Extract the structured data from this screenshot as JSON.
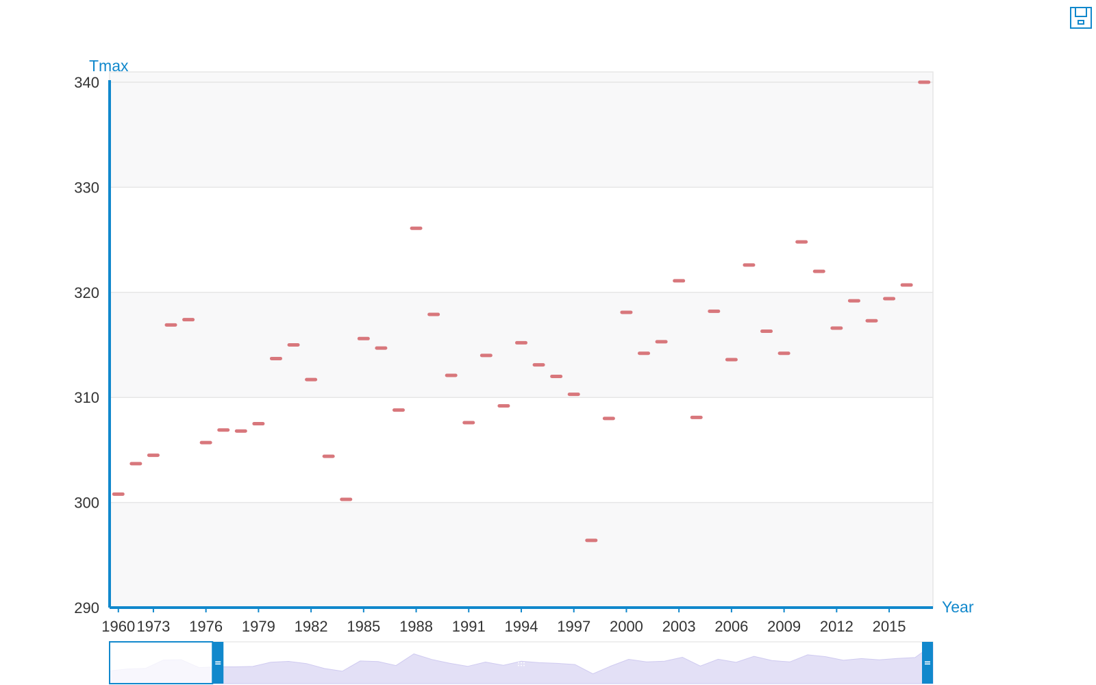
{
  "toolbox": {
    "save_icon": "save-as-image-icon"
  },
  "colors": {
    "accent": "#1188cc",
    "point": "#d8777c",
    "band_fill": "#f8f8f9",
    "grid": "#e6e6e6",
    "slider_fill": "#e3e0f6",
    "slider_handle": "#1188cc"
  },
  "chart_data": {
    "type": "scatter",
    "symbol": "dash",
    "title": "",
    "xlabel": "Year",
    "ylabel": "Tmax",
    "ylim": [
      290,
      340
    ],
    "yticks": [
      290,
      300,
      310,
      320,
      330,
      340
    ],
    "grid": true,
    "x_tick_labels": [
      "1960",
      "1973",
      "1976",
      "1979",
      "1982",
      "1985",
      "1988",
      "1991",
      "1994",
      "1997",
      "2000",
      "2003",
      "2006",
      "2009",
      "2012",
      "2015"
    ],
    "x": [
      "1960",
      "1971",
      "1972",
      "1973",
      "1974",
      "1975",
      "1976",
      "1977",
      "1978",
      "1979",
      "1980",
      "1981",
      "1982",
      "1983",
      "1984",
      "1985",
      "1986",
      "1987",
      "1988",
      "1989",
      "1990",
      "1991",
      "1992",
      "1993",
      "1994",
      "1995",
      "1996",
      "1997",
      "1998",
      "1999",
      "2000",
      "2001",
      "2002",
      "2003",
      "2004",
      "2005",
      "2006",
      "2007",
      "2008",
      "2009",
      "2010",
      "2011",
      "2012",
      "2013",
      "2014",
      "2015",
      "2016"
    ],
    "series": [
      {
        "values": [
          300.8,
          303.7,
          304.5,
          316.9,
          317.4,
          305.7,
          306.9,
          306.8,
          307.5,
          313.7,
          315.0,
          311.7,
          304.4,
          300.3,
          315.6,
          314.7,
          308.8,
          326.1,
          317.9,
          312.1,
          307.6,
          314.0,
          309.2,
          315.2,
          313.1,
          312.0,
          310.3,
          296.4,
          308.0,
          318.1,
          314.2,
          315.3,
          321.1,
          308.1,
          318.2,
          313.6,
          322.6,
          316.3,
          314.2,
          324.8,
          322.0,
          316.6,
          319.2,
          317.3,
          319.4,
          320.7,
          340.0
        ]
      }
    ],
    "zoom_slider": {
      "start_percent": 0,
      "end_percent": 12.5
    }
  }
}
